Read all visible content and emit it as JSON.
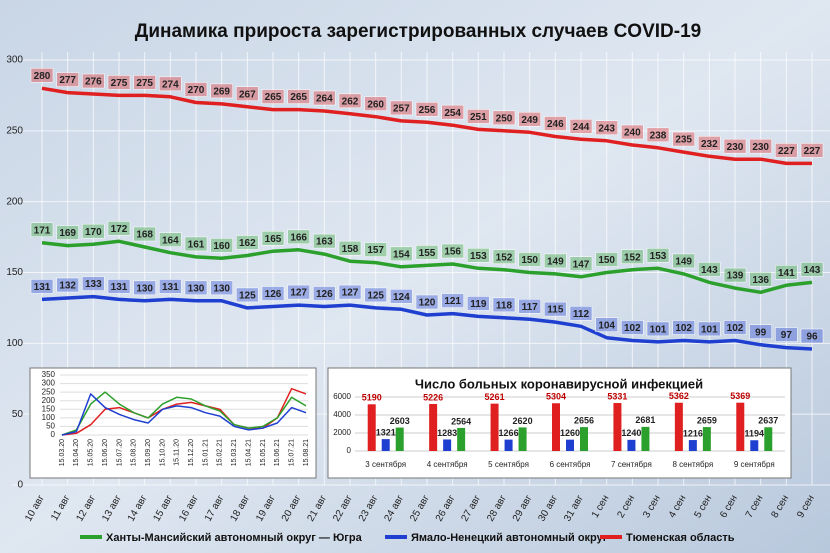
{
  "chart_data": [
    {
      "type": "line",
      "title": "Динамика прироста зарегистрированных случаев COVID-19",
      "categories": [
        "10 авг",
        "11 авг",
        "12 авг",
        "13 авг",
        "14 авг",
        "15 авг",
        "16 авг",
        "17 авг",
        "18 авг",
        "19 авг",
        "20 авг",
        "21 авг",
        "22 авг",
        "23 авг",
        "24 авг",
        "25 авг",
        "26 авг",
        "27 авг",
        "28 авг",
        "29 авг",
        "30 авг",
        "31 авг",
        "1 сен",
        "2 сен",
        "3 сен",
        "4 сен",
        "5 сен",
        "6 сен",
        "7 сен",
        "8 сен",
        "9 сен"
      ],
      "series": [
        {
          "name": "Ханты-Мансийский автономный округ — Югра",
          "color": "#2ca02c",
          "values": [
            171,
            169,
            170,
            172,
            168,
            164,
            161,
            160,
            162,
            165,
            166,
            163,
            158,
            157,
            154,
            155,
            156,
            153,
            152,
            150,
            149,
            147,
            150,
            152,
            153,
            149,
            143,
            139,
            136,
            141,
            143
          ]
        },
        {
          "name": "Ямало-Ненецкий автономный округ",
          "color": "#1f3fd0",
          "values": [
            131,
            132,
            133,
            131,
            130,
            131,
            130,
            130,
            125,
            126,
            127,
            126,
            127,
            125,
            124,
            120,
            121,
            119,
            118,
            117,
            115,
            112,
            104,
            102,
            101,
            102,
            101,
            102,
            99,
            97,
            96
          ]
        },
        {
          "name": "Тюменская область",
          "color": "#e02020",
          "values": [
            280,
            277,
            276,
            275,
            275,
            274,
            270,
            269,
            267,
            265,
            265,
            264,
            262,
            260,
            257,
            256,
            254,
            251,
            250,
            249,
            246,
            244,
            243,
            240,
            238,
            235,
            232,
            230,
            230,
            227,
            227
          ]
        }
      ],
      "ylim": [
        0,
        300
      ],
      "yticks": [
        0,
        50,
        100,
        150,
        200,
        250,
        300
      ],
      "grid": true
    },
    {
      "type": "line",
      "categories": [
        "15.03.20",
        "15.04.20",
        "15.05.20",
        "15.06.20",
        "15.07.20",
        "15.08.20",
        "15.09.20",
        "15.10.20",
        "15.11.20",
        "15.12.20",
        "15.01.21",
        "15.02.21",
        "15.03.21",
        "15.04.21",
        "15.05.21",
        "15.06.21",
        "15.07.21",
        "15.08.21"
      ],
      "series": [
        {
          "color": "#e02020",
          "values": [
            0,
            10,
            60,
            150,
            160,
            130,
            100,
            150,
            180,
            190,
            170,
            150,
            60,
            40,
            40,
            100,
            270,
            240
          ]
        },
        {
          "color": "#2ca02c",
          "values": [
            0,
            30,
            180,
            250,
            180,
            130,
            100,
            180,
            220,
            210,
            170,
            140,
            60,
            40,
            50,
            100,
            220,
            170
          ]
        },
        {
          "color": "#1f3fd0",
          "values": [
            0,
            20,
            240,
            160,
            120,
            90,
            70,
            150,
            170,
            160,
            130,
            110,
            50,
            30,
            40,
            70,
            160,
            130
          ]
        }
      ],
      "ylim": [
        0,
        350
      ],
      "yticks": [
        0,
        50,
        100,
        150,
        200,
        250,
        300,
        350
      ],
      "grid": true
    },
    {
      "type": "bar",
      "title": "Число больных коронавирусной  инфекцией",
      "categories": [
        "3 сентября",
        "4 сентября",
        "5 сентября",
        "6 сентября",
        "7 сентября",
        "8 сентября",
        "9 сентября"
      ],
      "series": [
        {
          "color": "#e02020",
          "values": [
            5190,
            5226,
            5261,
            5304,
            5331,
            5362,
            5369
          ]
        },
        {
          "color": "#1f3fd0",
          "values": [
            1321,
            1283,
            1266,
            1260,
            1240,
            1216,
            1194
          ]
        },
        {
          "color": "#2ca02c",
          "values": [
            2603,
            2564,
            2620,
            2656,
            2681,
            2659,
            2637
          ]
        }
      ],
      "ylim": [
        0,
        6000
      ],
      "yticks": [
        0,
        2000,
        4000,
        6000
      ],
      "grid": true
    }
  ]
}
